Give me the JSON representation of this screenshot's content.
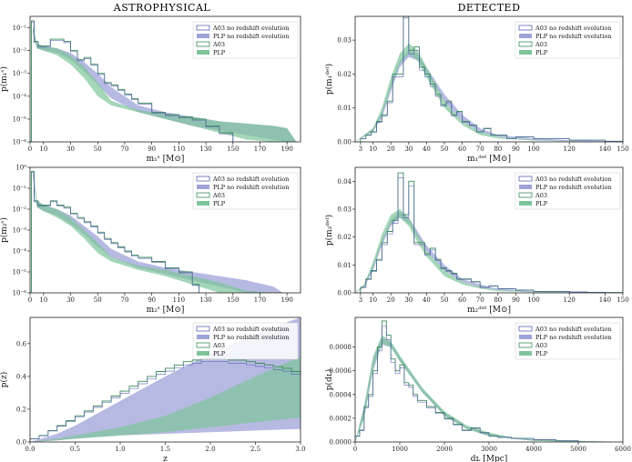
{
  "headers": {
    "left": "ASTROPHYSICAL",
    "right": "DETECTED"
  },
  "colors": {
    "blue_line": "#5a64b4",
    "blue_fill": "#9da3d8",
    "green_line": "#3a8a5c",
    "green_fill": "#7ec49a",
    "overlap": "#5f9a8c"
  },
  "legend": [
    "A03 no redshift evolution",
    "PLP no redshift evolution",
    "A03",
    "PLP"
  ],
  "chart_data": [
    {
      "id": "m1_astro",
      "type": "area",
      "scale_y": "log",
      "xlabel": "m₁ˢ [M⊙]",
      "ylabel": "p(m₁ˢ)",
      "xlim": [
        0,
        200
      ],
      "ylim_exp": [
        -6,
        -0.5
      ],
      "xticks": [
        0,
        10,
        30,
        50,
        70,
        90,
        110,
        130,
        150,
        170,
        190
      ],
      "yticks": [
        "10⁻⁶",
        "10⁻⁵",
        "10⁻⁴",
        "10⁻³",
        "10⁻²",
        "10⁻¹"
      ],
      "x": [
        2,
        5,
        10,
        20,
        30,
        40,
        50,
        60,
        80,
        100,
        120,
        140,
        160,
        180,
        190,
        197
      ],
      "blue_hi": [
        -0.9,
        -1.7,
        -1.8,
        -1.9,
        -2.1,
        -2.5,
        -3.0,
        -3.6,
        -4.4,
        -4.7,
        -4.9,
        -5.1,
        -5.2,
        -5.3,
        -5.4,
        -6
      ],
      "blue_lo": [
        -1.2,
        -1.9,
        -2.0,
        -2.1,
        -2.4,
        -2.9,
        -3.5,
        -4.1,
        -4.7,
        -5.0,
        -5.3,
        -5.5,
        -5.7,
        -5.9,
        -6,
        -6
      ],
      "green_hi": [
        -0.9,
        -1.7,
        -1.8,
        -1.9,
        -2.2,
        -2.7,
        -3.4,
        -4.2,
        -4.6,
        -4.8,
        -4.9,
        -5.1,
        -5.2,
        -5.3,
        -5.4,
        -6
      ],
      "green_lo": [
        -1.2,
        -1.9,
        -2.0,
        -2.2,
        -2.6,
        -3.2,
        -4.0,
        -4.4,
        -4.7,
        -5.0,
        -5.3,
        -5.6,
        -5.9,
        -6,
        -6,
        -6
      ],
      "hist_x": [
        1,
        3,
        6,
        10,
        15,
        20,
        25,
        30,
        35,
        40,
        45,
        50,
        55,
        60,
        65,
        70,
        75,
        80,
        90,
        100,
        110,
        120,
        130,
        140,
        150
      ],
      "hist_y": [
        -0.7,
        -1.6,
        -1.8,
        -1.8,
        -1.5,
        -1.5,
        -1.6,
        -2.0,
        -2.4,
        -2.3,
        -2.6,
        -3.0,
        -3.4,
        -3.5,
        -3.7,
        -3.9,
        -4.1,
        -4.3,
        -4.7,
        -4.8,
        -4.9,
        -5.0,
        -5.3,
        -5.6,
        -6
      ]
    },
    {
      "id": "m1_det",
      "type": "area",
      "xlabel": "m₁ᵈᵉᵗ [M⊙]",
      "ylabel": "p(m₁ᵈᵉᵗ)",
      "xlim": [
        0,
        150
      ],
      "ylim": [
        0,
        0.037
      ],
      "xticks": [
        3,
        10,
        20,
        30,
        40,
        50,
        60,
        70,
        80,
        90,
        100,
        120,
        140,
        150
      ],
      "yticks": [
        "0.00",
        "0.01",
        "0.02",
        "0.03"
      ],
      "ytick_vals": [
        0,
        0.01,
        0.02,
        0.03
      ],
      "x": [
        0,
        10,
        15,
        20,
        25,
        30,
        35,
        40,
        50,
        60,
        70,
        80,
        100,
        120,
        150
      ],
      "blue_hi": [
        0,
        0.004,
        0.009,
        0.017,
        0.024,
        0.027,
        0.026,
        0.022,
        0.014,
        0.008,
        0.004,
        0.002,
        0.001,
        0.0005,
        0.0002
      ],
      "blue_lo": [
        0,
        0.003,
        0.007,
        0.015,
        0.022,
        0.025,
        0.024,
        0.02,
        0.012,
        0.006,
        0.003,
        0.0015,
        0.0005,
        0.0002,
        0
      ],
      "green_hi": [
        0,
        0.004,
        0.01,
        0.019,
        0.026,
        0.029,
        0.027,
        0.022,
        0.012,
        0.006,
        0.003,
        0.0015,
        0.0006,
        0.0002,
        0
      ],
      "green_lo": [
        0,
        0.003,
        0.008,
        0.016,
        0.023,
        0.026,
        0.024,
        0.019,
        0.01,
        0.005,
        0.002,
        0.001,
        0.0004,
        0.0001,
        0
      ],
      "hist_x": [
        3,
        6,
        9,
        12,
        15,
        18,
        21,
        24,
        27,
        30,
        33,
        36,
        39,
        42,
        45,
        48,
        51,
        54,
        57,
        60,
        64,
        68,
        72,
        76,
        80,
        85,
        90,
        100,
        110,
        120,
        130,
        140,
        150
      ],
      "hist_y": [
        0.001,
        0.002,
        0.003,
        0.006,
        0.008,
        0.012,
        0.02,
        0.02,
        0.038,
        0.027,
        0.028,
        0.022,
        0.02,
        0.017,
        0.014,
        0.011,
        0.012,
        0.008,
        0.009,
        0.006,
        0.005,
        0.003,
        0.004,
        0.002,
        0.002,
        0.001,
        0.0015,
        0.001,
        0.001,
        0.0005,
        0.0005,
        0.0002,
        0
      ]
    },
    {
      "id": "m2_astro",
      "type": "area",
      "scale_y": "log",
      "xlabel": "m₂ˢ [M⊙]",
      "ylabel": "p(m₂ˢ)",
      "xlim": [
        0,
        200
      ],
      "ylim_exp": [
        -6,
        0
      ],
      "xticks": [
        0,
        10,
        30,
        50,
        70,
        90,
        110,
        130,
        150,
        170,
        190
      ],
      "yticks": [
        "10⁻⁶",
        "10⁻⁵",
        "10⁻⁴",
        "10⁻³",
        "10⁻²",
        "10⁻¹",
        "10⁰"
      ],
      "x": [
        2,
        5,
        10,
        20,
        30,
        40,
        50,
        60,
        80,
        100,
        120,
        140,
        160,
        180,
        187
      ],
      "blue_hi": [
        -0.1,
        -1.6,
        -1.8,
        -2.0,
        -2.3,
        -2.8,
        -3.3,
        -3.9,
        -4.5,
        -4.8,
        -5.0,
        -5.2,
        -5.4,
        -5.7,
        -6
      ],
      "blue_lo": [
        -0.4,
        -1.9,
        -2.1,
        -2.3,
        -2.7,
        -3.2,
        -3.8,
        -4.3,
        -4.8,
        -5.1,
        -5.4,
        -5.7,
        -6,
        -6,
        -6
      ],
      "green_hi": [
        -0.1,
        -1.6,
        -1.8,
        -2.0,
        -2.4,
        -3.0,
        -3.6,
        -4.3,
        -4.7,
        -4.9,
        -5.2,
        -5.5,
        -5.9,
        -6,
        -6
      ],
      "green_lo": [
        -0.4,
        -1.9,
        -2.1,
        -2.4,
        -2.8,
        -3.4,
        -4.1,
        -4.5,
        -4.9,
        -5.2,
        -5.6,
        -6,
        -6,
        -6,
        -6
      ],
      "hist_x": [
        1,
        3,
        6,
        10,
        15,
        20,
        25,
        30,
        35,
        40,
        45,
        50,
        55,
        60,
        65,
        70,
        75,
        80,
        90,
        100,
        110,
        120,
        125
      ],
      "hist_y": [
        -0.2,
        -1.6,
        -1.8,
        -1.8,
        -1.6,
        -1.8,
        -1.9,
        -2.2,
        -2.4,
        -2.6,
        -2.8,
        -3.1,
        -3.4,
        -3.6,
        -3.8,
        -4.0,
        -4.2,
        -4.3,
        -4.5,
        -4.8,
        -5.0,
        -5.6,
        -6
      ]
    },
    {
      "id": "m2_det",
      "type": "area",
      "xlabel": "m₂ᵈᵉᵗ [M⊙]",
      "ylabel": "p(m₂ᵈᵉᵗ)",
      "xlim": [
        0,
        150
      ],
      "ylim": [
        0,
        0.045
      ],
      "xticks": [
        3,
        10,
        20,
        30,
        40,
        50,
        60,
        70,
        80,
        90,
        100,
        120,
        140,
        150
      ],
      "yticks": [
        "0.00",
        "0.01",
        "0.02",
        "0.03",
        "0.04"
      ],
      "ytick_vals": [
        0,
        0.01,
        0.02,
        0.03,
        0.04
      ],
      "x": [
        0,
        5,
        10,
        15,
        20,
        25,
        30,
        35,
        40,
        50,
        60,
        70,
        80,
        100,
        150
      ],
      "blue_hi": [
        0,
        0.003,
        0.01,
        0.019,
        0.026,
        0.029,
        0.027,
        0.022,
        0.017,
        0.01,
        0.005,
        0.003,
        0.0015,
        0.0006,
        0
      ],
      "blue_lo": [
        0,
        0.002,
        0.008,
        0.017,
        0.024,
        0.027,
        0.025,
        0.02,
        0.015,
        0.008,
        0.004,
        0.002,
        0.001,
        0.0003,
        0
      ],
      "green_hi": [
        0,
        0.003,
        0.011,
        0.021,
        0.028,
        0.03,
        0.027,
        0.021,
        0.015,
        0.008,
        0.004,
        0.002,
        0.001,
        0.0004,
        0
      ],
      "green_lo": [
        0,
        0.002,
        0.009,
        0.018,
        0.025,
        0.027,
        0.024,
        0.018,
        0.013,
        0.006,
        0.003,
        0.0015,
        0.0006,
        0.0002,
        0
      ],
      "hist_x": [
        3,
        6,
        9,
        12,
        15,
        18,
        21,
        24,
        27,
        30,
        33,
        36,
        39,
        42,
        45,
        48,
        51,
        54,
        57,
        60,
        65,
        70,
        75,
        80,
        90,
        100,
        110,
        120,
        130,
        140,
        150
      ],
      "hist_y": [
        0.002,
        0.005,
        0.008,
        0.012,
        0.018,
        0.022,
        0.026,
        0.043,
        0.028,
        0.04,
        0.018,
        0.018,
        0.014,
        0.016,
        0.012,
        0.009,
        0.008,
        0.007,
        0.005,
        0.005,
        0.004,
        0.002,
        0.0025,
        0.0015,
        0.001,
        0.0005,
        0.0005,
        0.0003,
        0.0002,
        0.0001,
        0
      ]
    },
    {
      "id": "z",
      "type": "area",
      "xlabel": "z",
      "ylabel": "p(z)",
      "xlim": [
        0,
        3
      ],
      "ylim": [
        0,
        0.76
      ],
      "xticks": [
        "0.0",
        "0.5",
        "1.0",
        "1.5",
        "2.0",
        "2.5",
        "3.0"
      ],
      "xtick_vals": [
        0,
        0.5,
        1,
        1.5,
        2,
        2.5,
        3
      ],
      "yticks": [
        "0.0",
        "0.2",
        "0.4",
        "0.6"
      ],
      "ytick_vals": [
        0,
        0.2,
        0.4,
        0.6
      ],
      "x": [
        0,
        0.3,
        0.5,
        1.0,
        1.5,
        2.0,
        2.5,
        3.0
      ],
      "blue_hi": [
        0,
        0.05,
        0.1,
        0.25,
        0.4,
        0.54,
        0.66,
        0.76
      ],
      "blue_lo": [
        0,
        0.01,
        0.02,
        0.04,
        0.05,
        0.06,
        0.07,
        0.08
      ],
      "green_hi": [
        0,
        0.02,
        0.04,
        0.09,
        0.16,
        0.27,
        0.4,
        0.52
      ],
      "green_lo": [
        0,
        0.01,
        0.02,
        0.04,
        0.06,
        0.09,
        0.12,
        0.15
      ],
      "hist_x": [
        0,
        0.1,
        0.2,
        0.3,
        0.4,
        0.5,
        0.6,
        0.7,
        0.8,
        0.9,
        1.0,
        1.1,
        1.2,
        1.3,
        1.4,
        1.5,
        1.6,
        1.7,
        1.8,
        1.9,
        2.0,
        2.1,
        2.2,
        2.3,
        2.4,
        2.5,
        2.6,
        2.7,
        2.8,
        2.9,
        3.0
      ],
      "hist_y": [
        0.02,
        0.04,
        0.07,
        0.1,
        0.13,
        0.16,
        0.19,
        0.22,
        0.25,
        0.28,
        0.31,
        0.34,
        0.37,
        0.4,
        0.43,
        0.45,
        0.47,
        0.49,
        0.5,
        0.51,
        0.51,
        0.51,
        0.5,
        0.5,
        0.49,
        0.48,
        0.47,
        0.46,
        0.45,
        0.43,
        0.42
      ]
    },
    {
      "id": "dl",
      "type": "area",
      "xlabel": "dʟ [Mpc]",
      "ylabel": "p(dʟ)",
      "xlim": [
        0,
        6000
      ],
      "ylim": [
        0,
        0.00105
      ],
      "xticks": [
        "0",
        "1000",
        "2000",
        "3000",
        "4000",
        "5000",
        "6000"
      ],
      "xtick_vals": [
        0,
        1000,
        2000,
        3000,
        4000,
        5000,
        6000
      ],
      "yticks": [
        "0.0000",
        "0.0002",
        "0.0004",
        "0.0006",
        "0.0008"
      ],
      "ytick_vals": [
        0,
        0.0002,
        0.0004,
        0.0006,
        0.0008
      ],
      "x": [
        0,
        200,
        400,
        600,
        800,
        1000,
        1500,
        2000,
        2500,
        3000,
        3500,
        4000,
        5000,
        6000
      ],
      "blue_hi": [
        0,
        0.0003,
        0.0007,
        0.00088,
        0.00084,
        0.00072,
        0.00045,
        0.00025,
        0.00013,
        7e-05,
        4e-05,
        2e-05,
        1e-05,
        0
      ],
      "blue_lo": [
        0,
        0.0002,
        0.0006,
        0.00082,
        0.0008,
        0.00068,
        0.00042,
        0.00022,
        0.00011,
        5e-05,
        3e-05,
        1e-05,
        0,
        0
      ],
      "green_hi": [
        0,
        0.0003,
        0.00072,
        0.0009,
        0.00085,
        0.00073,
        0.00046,
        0.00026,
        0.00014,
        8e-05,
        4e-05,
        2e-05,
        1e-05,
        0
      ],
      "green_lo": [
        0,
        0.0002,
        0.00062,
        0.00083,
        0.0008,
        0.00068,
        0.00042,
        0.00022,
        0.00011,
        5e-05,
        3e-05,
        1e-05,
        0,
        0
      ],
      "hist_x": [
        0,
        100,
        200,
        300,
        400,
        500,
        600,
        700,
        800,
        900,
        1000,
        1100,
        1200,
        1300,
        1400,
        1600,
        1800,
        2000,
        2200,
        2400,
        2600,
        2800,
        3000,
        3200,
        3500,
        4000,
        4500,
        5000
      ],
      "hist_y": [
        5e-05,
        0.0001,
        0.0003,
        0.0004,
        0.0006,
        0.0008,
        0.00102,
        0.0009,
        0.0007,
        0.0006,
        0.00065,
        0.0005,
        0.00048,
        0.0004,
        0.00035,
        0.0003,
        0.00025,
        0.0002,
        0.00015,
        0.0001,
        0.00012,
        8e-05,
        5e-05,
        4e-05,
        3e-05,
        2e-05,
        1e-05,
        0
      ]
    }
  ]
}
